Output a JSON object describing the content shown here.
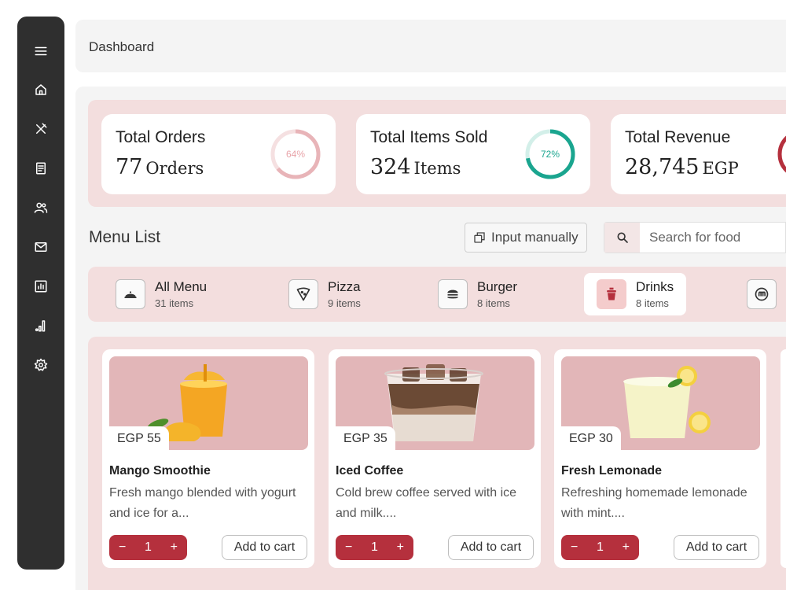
{
  "header": {
    "title": "Dashboard"
  },
  "stats": [
    {
      "label": "Total Orders",
      "value": "77",
      "unit": "Orders",
      "percent": 64,
      "percent_label": "64%",
      "color": "#e8b4b8"
    },
    {
      "label": "Total Items Sold",
      "value": "324",
      "unit": "Items",
      "percent": 72,
      "percent_label": "72%",
      "color": "#1aa58f"
    },
    {
      "label": "Total Revenue",
      "value": "28,745",
      "unit": "EGP",
      "percent": null,
      "percent_label": "",
      "color": "#b5303d"
    }
  ],
  "menu": {
    "title": "Menu List",
    "input_manual_label": "Input manually",
    "search_placeholder": "Search for food"
  },
  "categories": [
    {
      "name": "All Menu",
      "count": "31 items",
      "icon": "dish-cover-icon"
    },
    {
      "name": "Pizza",
      "count": "9 items",
      "icon": "pizza-icon"
    },
    {
      "name": "Burger",
      "count": "8 items",
      "icon": "burger-icon"
    },
    {
      "name": "Drinks",
      "count": "8 items",
      "icon": "drink-cup-icon",
      "active": true
    },
    {
      "name": "",
      "count": "",
      "icon": "noodles-icon"
    }
  ],
  "products": [
    {
      "name": "Mango Smoothie",
      "price": "EGP 55",
      "desc": "Fresh mango blended with yogurt and ice for a...",
      "qty": "1",
      "add_label": "Add to cart"
    },
    {
      "name": "Iced Coffee",
      "price": "EGP 35",
      "desc": "Cold brew coffee served with ice and milk....",
      "qty": "1",
      "add_label": "Add to cart"
    },
    {
      "name": "Fresh Lemonade",
      "price": "EGP 30",
      "desc": "Refreshing homemade lemonade with mint....",
      "qty": "1",
      "add_label": "Add to cart"
    }
  ],
  "qty_minus": "−",
  "qty_plus": "+",
  "colors": {
    "accent": "#b5303d",
    "soft_pink": "#f3dede",
    "sidebar": "#2f2f2f"
  }
}
